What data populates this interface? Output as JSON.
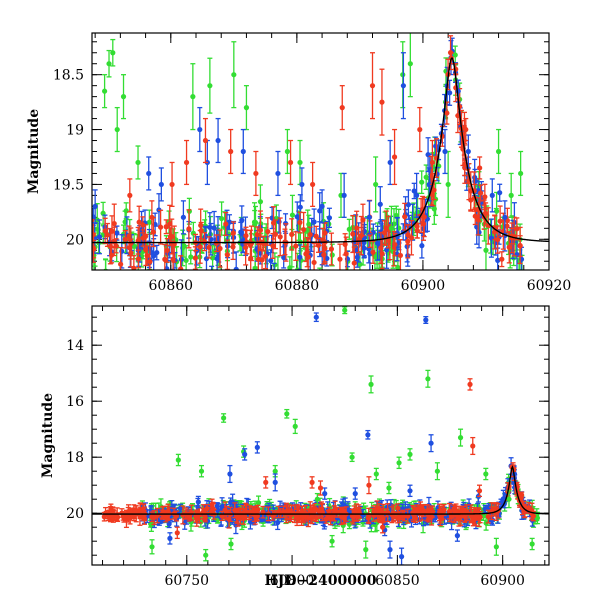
{
  "colors": {
    "green": "#33dd33",
    "blue": "#1f4fe0",
    "red": "#f03a20",
    "model": "#000000"
  },
  "chart_data": [
    {
      "type": "scatter",
      "xlabel": "",
      "ylabel": "Magnitude",
      "xlim": [
        60847.5,
        60920
      ],
      "ylim": [
        20.28,
        18.12
      ],
      "y_inverted": true,
      "xticks": [
        60860,
        60880,
        60900,
        60920
      ],
      "yticks": [
        18.5,
        19,
        19.5,
        20
      ],
      "xtick_labels": [
        "60860",
        "60880",
        "60900",
        "60920"
      ],
      "ytick_labels": [
        "18.5",
        "19",
        "19.5",
        "20"
      ],
      "model": {
        "baseline": 20.03,
        "peak_mag": 18.45,
        "t0": 60904.6,
        "tE": 4.4
      },
      "series": [
        {
          "color": "green",
          "points": [
            [
              60849.5,
              18.65,
              0.15
            ],
            [
              60850.2,
              18.4,
              0.12
            ],
            [
              60850.8,
              18.3,
              0.12
            ],
            [
              60852.5,
              18.7,
              0.2
            ],
            [
              60851.5,
              19.0,
              0.2
            ],
            [
              60854.8,
              19.3,
              0.15
            ],
            [
              60863.5,
              18.7,
              0.3
            ],
            [
              60866.2,
              18.6,
              0.25
            ],
            [
              60870.0,
              18.5,
              0.3
            ],
            [
              60872.0,
              18.8,
              0.2
            ],
            [
              60878.5,
              19.2,
              0.2
            ],
            [
              60880.5,
              19.3,
              0.2
            ],
            [
              60887.0,
              19.6,
              0.2
            ],
            [
              60892.5,
              19.5,
              0.25
            ],
            [
              60895.0,
              19.9,
              0.2
            ],
            [
              60896.8,
              18.5,
              0.3
            ],
            [
              60898.0,
              18.4,
              0.3
            ],
            [
              60904.0,
              19.5,
              0.3
            ],
            [
              60912.0,
              19.2,
              0.2
            ],
            [
              60914.0,
              19.6,
              0.2
            ],
            [
              60915.5,
              19.4,
              0.2
            ],
            [
              60910.0,
              20.1,
              0.2
            ]
          ]
        },
        {
          "color": "blue",
          "points": [
            [
              60848.0,
              19.7,
              0.15
            ],
            [
              60856.5,
              19.4,
              0.15
            ],
            [
              60858.5,
              19.5,
              0.15
            ],
            [
              60862.0,
              19.8,
              0.15
            ],
            [
              60864.6,
              19.0,
              0.2
            ],
            [
              60865.8,
              19.3,
              0.2
            ],
            [
              60867.5,
              19.1,
              0.2
            ],
            [
              60871.5,
              19.2,
              0.2
            ],
            [
              60877.0,
              19.4,
              0.2
            ],
            [
              60880.8,
              19.5,
              0.15
            ],
            [
              60884.0,
              19.7,
              0.15
            ],
            [
              60887.5,
              19.6,
              0.2
            ],
            [
              60891.5,
              19.8,
              0.15
            ],
            [
              60894.8,
              19.3,
              0.2
            ],
            [
              60896.9,
              18.6,
              0.3
            ],
            [
              60899.0,
              19.6,
              0.2
            ],
            [
              60901.0,
              19.5,
              0.15
            ],
            [
              60903.5,
              19.2,
              0.2
            ],
            [
              60905.6,
              18.65,
              0.1
            ],
            [
              60907.2,
              19.2,
              0.15
            ],
            [
              60911.0,
              19.6,
              0.15
            ],
            [
              60913.0,
              19.8,
              0.15
            ]
          ]
        },
        {
          "color": "red",
          "points": [
            [
              60853.5,
              19.6,
              0.15
            ],
            [
              60857.0,
              19.8,
              0.15
            ],
            [
              60860.2,
              19.5,
              0.2
            ],
            [
              60862.5,
              19.3,
              0.2
            ],
            [
              60865.5,
              19.1,
              0.2
            ],
            [
              60869.5,
              19.2,
              0.2
            ],
            [
              60873.5,
              19.4,
              0.2
            ],
            [
              60879.0,
              19.3,
              0.2
            ],
            [
              60882.5,
              19.5,
              0.2
            ],
            [
              60887.2,
              18.8,
              0.2
            ],
            [
              60892.0,
              18.6,
              0.3
            ],
            [
              60893.5,
              18.75,
              0.3
            ],
            [
              60895.5,
              19.25,
              0.25
            ],
            [
              60899.5,
              19.0,
              0.2
            ],
            [
              60901.5,
              19.3,
              0.2
            ],
            [
              60903.8,
              18.85,
              0.1
            ],
            [
              60904.5,
              18.35,
              0.05
            ],
            [
              60905.2,
              18.45,
              0.05
            ],
            [
              60906.8,
              19.0,
              0.1
            ],
            [
              60909.0,
              19.35,
              0.1
            ]
          ]
        }
      ]
    },
    {
      "type": "scatter",
      "xlabel": "HJD−2400000",
      "ylabel": "Magnitude",
      "xlim": [
        60705,
        60922
      ],
      "ylim": [
        21.85,
        12.6
      ],
      "y_inverted": true,
      "xticks": [
        60750,
        60800,
        60850,
        60900
      ],
      "yticks": [
        14,
        16,
        18,
        20
      ],
      "xtick_labels": [
        "60750",
        "60800",
        "60850",
        "60900"
      ],
      "ytick_labels": [
        "14",
        "16",
        "18",
        "20"
      ],
      "model": {
        "baseline": 20.03,
        "peak_mag": 18.45,
        "t0": 60904.6,
        "tE": 4.4
      },
      "series": [
        {
          "color": "green",
          "points": [
            [
              60733.5,
              21.2,
              0.25
            ],
            [
              60746.0,
              18.1,
              0.2
            ],
            [
              60757.0,
              18.5,
              0.2
            ],
            [
              60767.5,
              16.6,
              0.15
            ],
            [
              60777.0,
              17.8,
              0.2
            ],
            [
              60792.0,
              18.5,
              0.2
            ],
            [
              60797.5,
              16.45,
              0.15
            ],
            [
              60801.5,
              16.9,
              0.25
            ],
            [
              60812.0,
              19.5,
              0.2
            ],
            [
              60825.0,
              12.75,
              0.12
            ],
            [
              60828.5,
              18.0,
              0.15
            ],
            [
              60837.5,
              15.4,
              0.3
            ],
            [
              60840.0,
              18.6,
              0.2
            ],
            [
              60846.0,
              19.1,
              0.2
            ],
            [
              60850.8,
              18.2,
              0.2
            ],
            [
              60856.0,
              17.9,
              0.2
            ],
            [
              60864.5,
              15.2,
              0.3
            ],
            [
              60869.0,
              18.5,
              0.3
            ],
            [
              60880.0,
              17.3,
              0.3
            ],
            [
              60892.0,
              18.6,
              0.2
            ],
            [
              60897.0,
              21.2,
              0.3
            ],
            [
              60903.0,
              19.5,
              0.3
            ],
            [
              60914.0,
              21.1,
              0.2
            ],
            [
              60759.0,
              21.5,
              0.2
            ],
            [
              60771.0,
              21.1,
              0.2
            ],
            [
              60819.0,
              21.0,
              0.2
            ],
            [
              60835.0,
              21.3,
              0.3
            ]
          ]
        },
        {
          "color": "blue",
          "points": [
            [
              60742.0,
              20.9,
              0.2
            ],
            [
              60755.5,
              19.6,
              0.2
            ],
            [
              60770.5,
              18.6,
              0.3
            ],
            [
              60777.5,
              17.9,
              0.2
            ],
            [
              60783.5,
              17.65,
              0.2
            ],
            [
              60792.0,
              18.9,
              0.3
            ],
            [
              60811.5,
              13.0,
              0.15
            ],
            [
              60815.5,
              19.3,
              0.2
            ],
            [
              60830.0,
              19.3,
              0.2
            ],
            [
              60836.0,
              17.2,
              0.15
            ],
            [
              60844.0,
              20.6,
              0.2
            ],
            [
              60846.5,
              21.3,
              0.3
            ],
            [
              60856.0,
              19.2,
              0.2
            ],
            [
              60863.5,
              13.1,
              0.12
            ],
            [
              60866.0,
              17.5,
              0.3
            ],
            [
              60878.5,
              20.8,
              0.2
            ],
            [
              60888.5,
              19.4,
              0.2
            ],
            [
              60905.6,
              18.6,
              0.15
            ],
            [
              60852.0,
              21.55,
              0.3
            ]
          ]
        },
        {
          "color": "red",
          "points": [
            [
              60745.5,
              20.7,
              0.2
            ],
            [
              60762.0,
              19.7,
              0.2
            ],
            [
              60787.5,
              18.9,
              0.2
            ],
            [
              60809.5,
              18.9,
              0.2
            ],
            [
              60813.5,
              19.1,
              0.25
            ],
            [
              60836.5,
              19.0,
              0.3
            ],
            [
              60843.0,
              20.5,
              0.2
            ],
            [
              60861.0,
              19.8,
              0.2
            ],
            [
              60884.5,
              15.4,
              0.2
            ],
            [
              60885.8,
              17.6,
              0.3
            ],
            [
              60889.0,
              19.2,
              0.2
            ],
            [
              60904.5,
              18.35,
              0.05
            ],
            [
              60905.2,
              18.45,
              0.05
            ],
            [
              60906.8,
              19.0,
              0.1
            ],
            [
              60909.0,
              19.35,
              0.1
            ]
          ]
        }
      ]
    }
  ]
}
